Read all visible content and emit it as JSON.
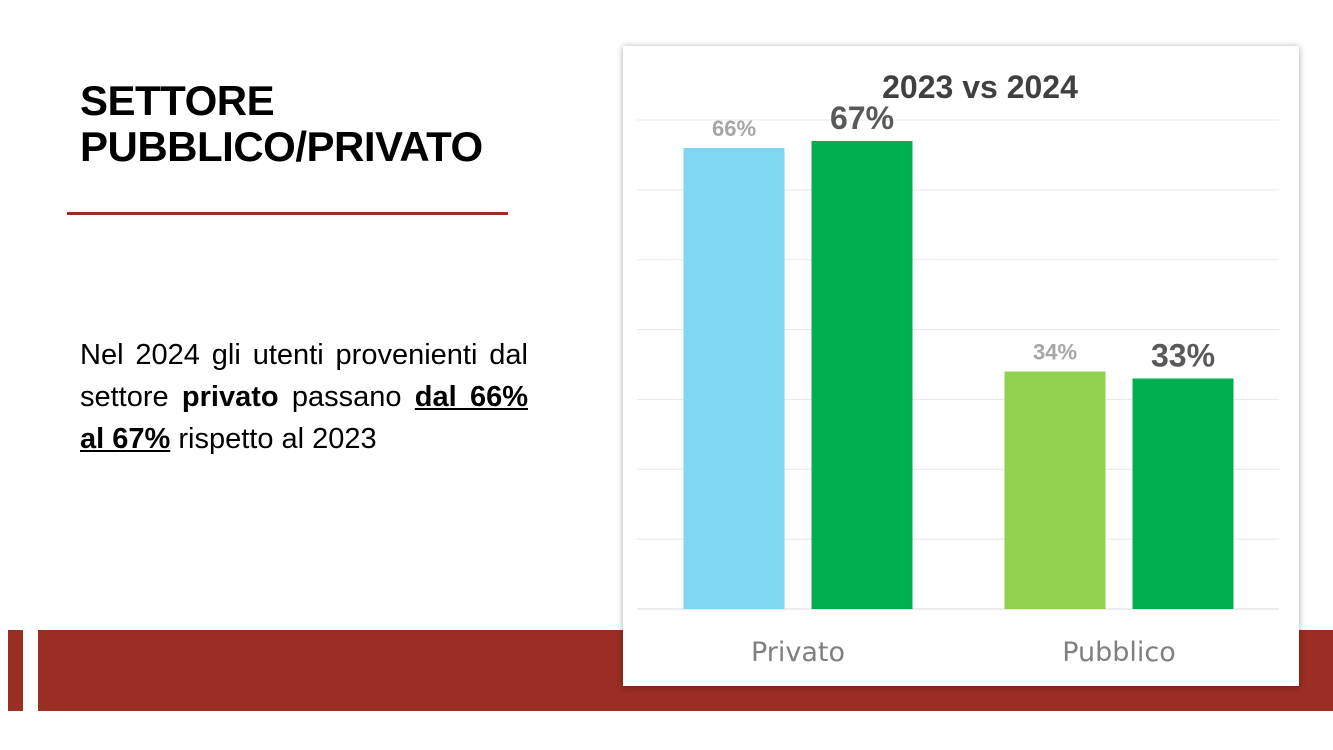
{
  "slide": {
    "title_line1": "SETTORE",
    "title_line2": "PUBBLICO/PRIVATO",
    "body": {
      "p1": "Nel 2024 gli utenti provenienti dal settore ",
      "bold1": "privato",
      "p2": " passano ",
      "bold_underlined": "dal 66% al 67%",
      "p3": " rispetto al 2023"
    }
  },
  "colors": {
    "accent": "#9b2e22",
    "bar_2023_privato": "#7fd8f2",
    "bar_2023_pubblico": "#92d050",
    "bar_2024": "#00b050"
  },
  "chart_data": {
    "type": "bar",
    "title": "2023 vs 2024",
    "categories": [
      "Privato",
      "Pubblico"
    ],
    "series": [
      {
        "values": [
          66,
          34
        ],
        "labels": [
          "66%",
          "34%"
        ]
      },
      {
        "values": [
          67,
          33
        ],
        "labels": [
          "67%",
          "33%"
        ]
      }
    ],
    "ylim": [
      0,
      70
    ],
    "grid": true,
    "legend": "none"
  }
}
